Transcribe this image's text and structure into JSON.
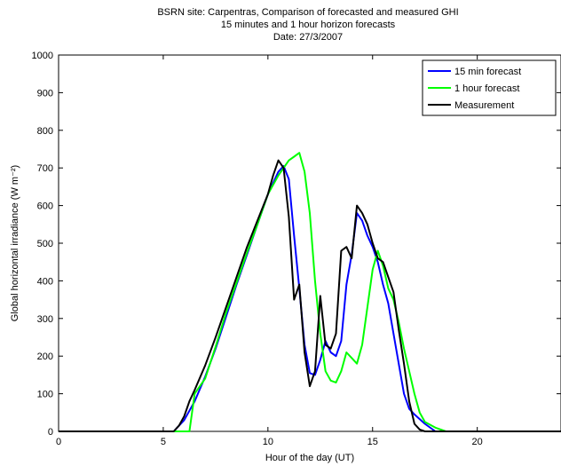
{
  "chart_data": {
    "type": "line",
    "title_lines": [
      "BSRN site: Carpentras, Comparison of forecasted and measured GHI",
      "15 minutes and 1 hour horizon forecasts",
      "Date: 27/3/2007"
    ],
    "xlabel": "Hour of the day (UT)",
    "ylabel": "Global horizontal irradiance (W m⁻²)",
    "xlim": [
      0,
      24
    ],
    "ylim": [
      0,
      1000
    ],
    "xticks": [
      0,
      5,
      10,
      15,
      20
    ],
    "yticks": [
      0,
      100,
      200,
      300,
      400,
      500,
      600,
      700,
      800,
      900,
      1000
    ],
    "grid": false,
    "legend_position": "top-right",
    "series": [
      {
        "name": "15 min forecast",
        "color": "#0000ff",
        "x": [
          0,
          5.5,
          6.0,
          6.5,
          7.0,
          7.5,
          8.0,
          8.5,
          9.0,
          9.5,
          10.0,
          10.5,
          10.75,
          11.0,
          11.25,
          11.5,
          11.75,
          12.0,
          12.25,
          12.5,
          12.75,
          13.0,
          13.25,
          13.5,
          13.75,
          14.0,
          14.25,
          14.5,
          14.75,
          15.0,
          15.25,
          15.5,
          15.75,
          16.0,
          16.25,
          16.5,
          16.75,
          17.0,
          17.5,
          18.0,
          24
        ],
        "y": [
          0,
          0,
          30,
          80,
          145,
          220,
          305,
          390,
          470,
          550,
          630,
          690,
          705,
          670,
          520,
          380,
          230,
          155,
          150,
          190,
          240,
          210,
          200,
          240,
          390,
          470,
          580,
          560,
          520,
          490,
          450,
          390,
          340,
          260,
          180,
          100,
          60,
          45,
          20,
          0,
          0
        ]
      },
      {
        "name": "1 hour forecast",
        "color": "#00ff00",
        "x": [
          0,
          6.25,
          6.5,
          6.75,
          7.0,
          7.5,
          8.0,
          8.5,
          9.0,
          9.5,
          10.0,
          10.5,
          11.0,
          11.25,
          11.5,
          11.75,
          12.0,
          12.25,
          12.5,
          12.75,
          13.0,
          13.25,
          13.5,
          13.75,
          14.0,
          14.25,
          14.5,
          14.75,
          15.0,
          15.25,
          15.5,
          15.75,
          16.0,
          16.25,
          16.5,
          16.75,
          17.0,
          17.25,
          17.5,
          18.0,
          18.5,
          24
        ],
        "y": [
          0,
          0,
          100,
          120,
          140,
          225,
          315,
          395,
          475,
          550,
          630,
          680,
          720,
          730,
          740,
          690,
          580,
          400,
          260,
          160,
          135,
          130,
          160,
          210,
          195,
          180,
          230,
          330,
          430,
          480,
          440,
          380,
          350,
          290,
          220,
          160,
          100,
          50,
          25,
          10,
          0,
          0
        ]
      },
      {
        "name": "Measurement",
        "color": "#000000",
        "x": [
          0,
          5.5,
          5.75,
          6.0,
          6.25,
          6.5,
          7.0,
          7.5,
          8.0,
          8.5,
          9.0,
          9.5,
          10.0,
          10.25,
          10.5,
          10.75,
          11.0,
          11.25,
          11.5,
          11.75,
          12.0,
          12.25,
          12.5,
          12.75,
          13.0,
          13.25,
          13.5,
          13.75,
          14.0,
          14.25,
          14.5,
          14.75,
          15.0,
          15.25,
          15.5,
          15.75,
          16.0,
          16.25,
          16.5,
          16.75,
          17.0,
          17.25,
          17.5,
          24
        ],
        "y": [
          0,
          0,
          15,
          40,
          80,
          110,
          175,
          250,
          330,
          410,
          490,
          560,
          630,
          680,
          720,
          700,
          570,
          350,
          390,
          210,
          120,
          160,
          360,
          230,
          220,
          260,
          480,
          490,
          460,
          600,
          580,
          550,
          500,
          460,
          450,
          410,
          370,
          270,
          180,
          80,
          20,
          5,
          0,
          0
        ]
      }
    ]
  }
}
